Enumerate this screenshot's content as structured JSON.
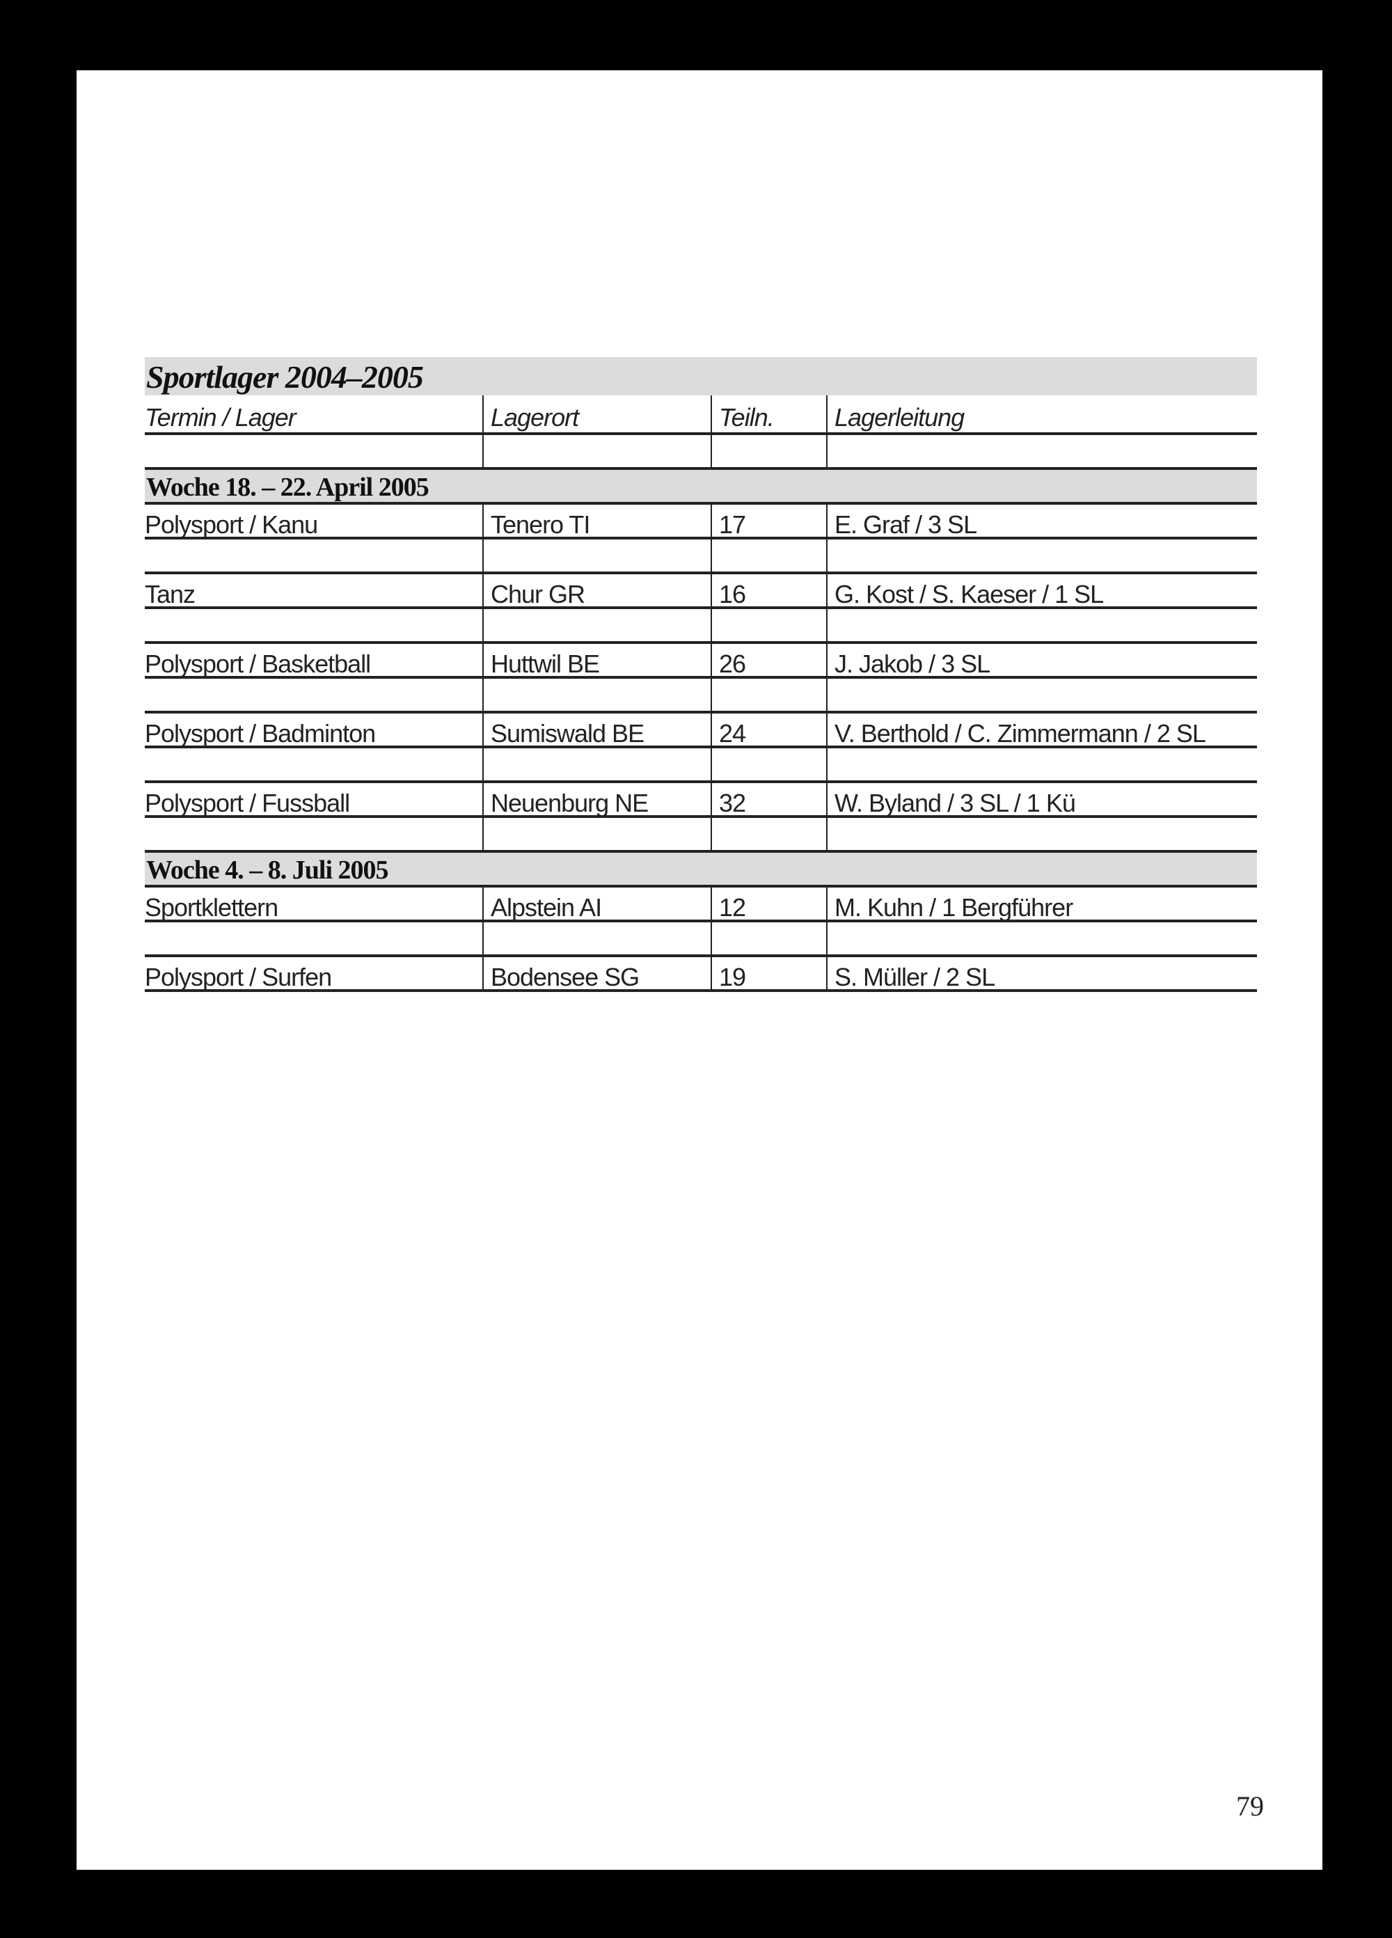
{
  "title": "Sportlager 2004–2005",
  "columns": [
    "Termin / Lager",
    "Lagerort",
    "Teiln.",
    "Lagerleitung"
  ],
  "sections": [
    {
      "heading": "Woche 18. – 22. April 2005",
      "rows": [
        [
          "Polysport / Kanu",
          "Tenero TI",
          "17",
          "E. Graf / 3 SL"
        ],
        [
          "Tanz",
          "Chur GR",
          "16",
          "G. Kost / S. Kaeser / 1 SL"
        ],
        [
          "Polysport / Basketball",
          "Huttwil BE",
          "26",
          "J. Jakob / 3 SL"
        ],
        [
          "Polysport / Badminton",
          "Sumiswald BE",
          "24",
          "V. Berthold / C. Zimmermann / 2 SL"
        ],
        [
          "Polysport / Fussball",
          "Neuenburg NE",
          "32",
          "W. Byland / 3 SL / 1 Kü"
        ]
      ]
    },
    {
      "heading": "Woche 4. – 8. Juli 2005",
      "rows": [
        [
          "Sportklettern",
          "Alpstein AI",
          "12",
          "M. Kuhn / 1 Bergführer"
        ],
        [
          "Polysport / Surfen",
          "Bodensee SG",
          "19",
          "S. Müller / 2 SL"
        ]
      ]
    }
  ],
  "page_number": "79"
}
